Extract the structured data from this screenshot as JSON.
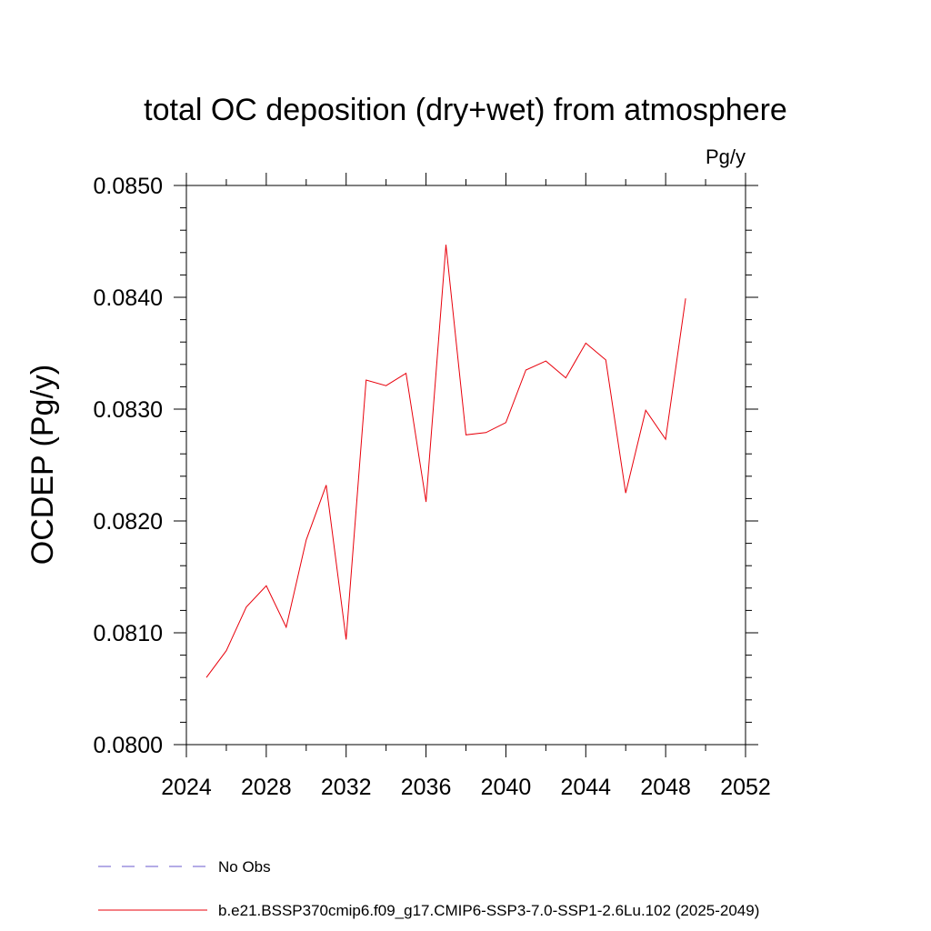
{
  "chart_data": {
    "type": "line",
    "title": "total OC deposition (dry+wet) from atmosphere",
    "units_label": "Pg/y",
    "ylabel": "OCDEP  (Pg/y)",
    "xlabel": "",
    "xlim": [
      2024,
      2052
    ],
    "ylim": [
      0.08,
      0.085
    ],
    "x_ticks": [
      2024,
      2028,
      2032,
      2036,
      2040,
      2044,
      2048,
      2052
    ],
    "x_tick_labels": [
      "2024",
      "2028",
      "2032",
      "2036",
      "2040",
      "2044",
      "2048",
      "2052"
    ],
    "y_ticks": [
      0.08,
      0.081,
      0.082,
      0.083,
      0.084,
      0.085
    ],
    "y_tick_labels": [
      "0.0800",
      "0.0810",
      "0.0820",
      "0.0830",
      "0.0840",
      "0.0850"
    ],
    "grid": false,
    "x": [
      2025,
      2026,
      2027,
      2028,
      2029,
      2030,
      2031,
      2032,
      2033,
      2034,
      2035,
      2036,
      2037,
      2038,
      2039,
      2040,
      2041,
      2042,
      2043,
      2044,
      2045,
      2046,
      2047,
      2048,
      2049
    ],
    "series": [
      {
        "name": "b.e21.BSSP370cmip6.f09_g17.CMIP6-SSP3-7.0-SSP1-2.6Lu.102 (2025-2049)",
        "color": "#e8000b",
        "values": [
          0.0806,
          0.08084,
          0.08123,
          0.08142,
          0.08105,
          0.08183,
          0.08232,
          0.08094,
          0.08326,
          0.08321,
          0.08332,
          0.08217,
          0.08447,
          0.08277,
          0.08279,
          0.08288,
          0.08335,
          0.08343,
          0.08328,
          0.08359,
          0.08344,
          0.08225,
          0.08299,
          0.08273,
          0.08399
        ]
      }
    ],
    "legend": {
      "placement": "bottom",
      "entries": [
        {
          "label": "No Obs",
          "style": "dashed",
          "color": "#6a5acd"
        },
        {
          "label": "b.e21.BSSP370cmip6.f09_g17.CMIP6-SSP3-7.0-SSP1-2.6Lu.102 (2025-2049)",
          "style": "solid",
          "color": "#e8000b"
        }
      ]
    }
  }
}
